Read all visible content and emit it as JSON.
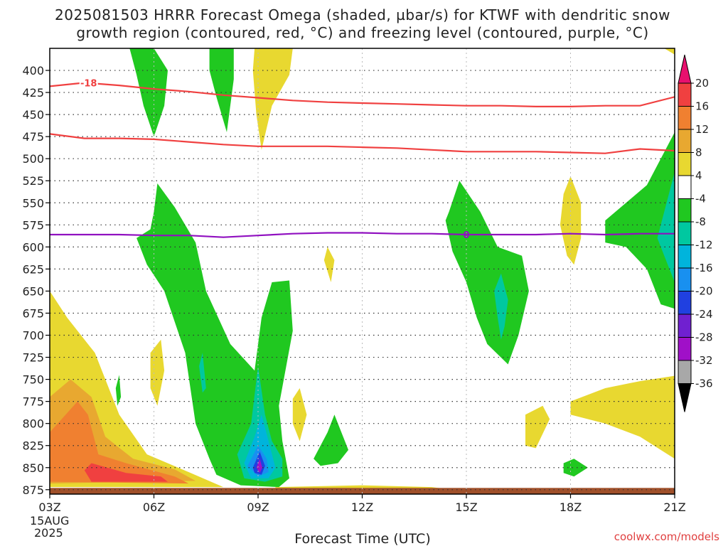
{
  "chart_data": {
    "type": "heatmap",
    "title": "2025081503 HRRR Forecast Omega (shaded, µbar/s) for KTWF with dendritic snow",
    "subtitle": "growth region (contoured, red, °C) and freezing level (contoured, purple, °C)",
    "xlabel": "Forecast Time (UTC)",
    "ylabel": "",
    "credit": "coolwx.com/models",
    "x_ticks": [
      "03Z",
      "06Z",
      "09Z",
      "12Z",
      "15Z",
      "18Z",
      "21Z"
    ],
    "x_hours": [
      3,
      6,
      9,
      12,
      15,
      18,
      21
    ],
    "x_date_lines": [
      "15AUG",
      "2025"
    ],
    "xlim": [
      3,
      21
    ],
    "y_ticks": [
      400,
      425,
      450,
      475,
      500,
      525,
      550,
      575,
      600,
      625,
      650,
      675,
      700,
      725,
      750,
      775,
      800,
      825,
      850,
      875
    ],
    "ylim": [
      375,
      880
    ],
    "grid": true,
    "colorbar": {
      "labels": [
        "20",
        "16",
        "12",
        "8",
        "4",
        "-4",
        "-8",
        "-12",
        "-16",
        "-20",
        "-24",
        "-28",
        "-32",
        "-36"
      ],
      "colors": [
        "#e8106e",
        "#f04040",
        "#f08030",
        "#e8a830",
        "#e8d830",
        "#ffffff",
        "#20c820",
        "#00c8a0",
        "#00b4dc",
        "#1890f0",
        "#2040e0",
        "#7020d0",
        "#a010c8",
        "#a8a8a8",
        "#000000"
      ]
    },
    "contour_labels": {
      "dgz_top": "-18",
      "freezing_level": "0"
    },
    "series": [
      {
        "name": "dgz_upper",
        "color": "#f04040",
        "x": [
          3,
          4,
          5,
          6,
          7,
          8,
          9,
          10,
          11,
          12,
          13,
          14,
          15,
          16,
          17,
          18,
          19,
          20,
          21
        ],
        "y": [
          418,
          414,
          417,
          421,
          424,
          428,
          431,
          434,
          436,
          437,
          438,
          439,
          440,
          440,
          441,
          441,
          440,
          440,
          430
        ]
      },
      {
        "name": "dgz_lower",
        "color": "#f04040",
        "x": [
          3,
          4,
          5,
          6,
          7,
          8,
          9,
          10,
          11,
          12,
          13,
          14,
          15,
          16,
          17,
          18,
          19,
          20,
          21
        ],
        "y": [
          472,
          477,
          477,
          478,
          481,
          484,
          486,
          486,
          486,
          487,
          488,
          490,
          492,
          492,
          492,
          493,
          494,
          489,
          491
        ]
      },
      {
        "name": "freezing_level",
        "color": "#9010c0",
        "x": [
          3,
          4,
          5,
          6,
          7,
          8,
          9,
          10,
          11,
          12,
          13,
          14,
          15,
          16,
          17,
          18,
          19,
          20,
          21
        ],
        "y": [
          586,
          586,
          586,
          587,
          587,
          589,
          587,
          585,
          584,
          584,
          585,
          585,
          586,
          586,
          586,
          585,
          586,
          585,
          585
        ]
      }
    ],
    "shaded_regions": [
      {
        "color": "#20c820",
        "points": [
          [
            5.3,
            375
          ],
          [
            6.0,
            375
          ],
          [
            6.4,
            400
          ],
          [
            6.3,
            440
          ],
          [
            6.0,
            475
          ],
          [
            5.7,
            440
          ],
          [
            5.5,
            405
          ]
        ]
      },
      {
        "color": "#20c820",
        "points": [
          [
            7.6,
            375
          ],
          [
            8.3,
            375
          ],
          [
            8.3,
            410
          ],
          [
            8.1,
            470
          ],
          [
            7.8,
            430
          ],
          [
            7.6,
            400
          ]
        ]
      },
      {
        "color": "#e8d830",
        "points": [
          [
            8.9,
            375
          ],
          [
            10.0,
            375
          ],
          [
            9.9,
            405
          ],
          [
            9.4,
            440
          ],
          [
            9.1,
            490
          ],
          [
            8.95,
            450
          ],
          [
            8.85,
            400
          ]
        ]
      },
      {
        "color": "#e8d830",
        "points": [
          [
            20.7,
            375
          ],
          [
            21,
            375
          ],
          [
            21,
            382
          ]
        ]
      },
      {
        "color": "#20c820",
        "points": [
          [
            5.5,
            590
          ],
          [
            5.9,
            580
          ],
          [
            6.0,
            560
          ],
          [
            6.1,
            528
          ],
          [
            6.6,
            555
          ],
          [
            7.2,
            595
          ],
          [
            7.5,
            650
          ],
          [
            8.2,
            710
          ],
          [
            8.9,
            740
          ],
          [
            9.1,
            680
          ],
          [
            9.4,
            640
          ],
          [
            9.9,
            638
          ],
          [
            10.0,
            695
          ],
          [
            9.6,
            780
          ],
          [
            9.7,
            820
          ],
          [
            9.9,
            862
          ],
          [
            9.6,
            872
          ],
          [
            8.5,
            870
          ],
          [
            7.8,
            858
          ],
          [
            7.6,
            840
          ],
          [
            7.2,
            800
          ],
          [
            6.9,
            720
          ],
          [
            6.3,
            650
          ],
          [
            5.8,
            620
          ]
        ]
      },
      {
        "color": "#00c8a0",
        "points": [
          [
            8.4,
            835
          ],
          [
            8.8,
            800
          ],
          [
            9.0,
            735
          ],
          [
            9.2,
            790
          ],
          [
            9.4,
            820
          ],
          [
            9.7,
            840
          ],
          [
            9.7,
            860
          ],
          [
            9.2,
            866
          ],
          [
            8.6,
            862
          ]
        ]
      },
      {
        "color": "#00b4dc",
        "points": [
          [
            8.6,
            845
          ],
          [
            8.9,
            815
          ],
          [
            9.1,
            790
          ],
          [
            9.3,
            820
          ],
          [
            9.5,
            850
          ],
          [
            9.3,
            862
          ],
          [
            8.8,
            862
          ]
        ]
      },
      {
        "color": "#1890f0",
        "points": [
          [
            8.7,
            848
          ],
          [
            9.0,
            825
          ],
          [
            9.25,
            840
          ],
          [
            9.3,
            855
          ],
          [
            9.0,
            860
          ]
        ]
      },
      {
        "color": "#2040e0",
        "points": [
          [
            8.85,
            850
          ],
          [
            9.05,
            832
          ],
          [
            9.2,
            848
          ],
          [
            9.1,
            858
          ],
          [
            8.9,
            856
          ]
        ]
      },
      {
        "color": "#a010c8",
        "points": [
          [
            8.95,
            850
          ],
          [
            9.05,
            840
          ],
          [
            9.12,
            850
          ],
          [
            9.05,
            856
          ]
        ]
      },
      {
        "color": "#e8d830",
        "points": [
          [
            11.0,
            600
          ],
          [
            11.2,
            615
          ],
          [
            11.1,
            640
          ],
          [
            10.9,
            615
          ]
        ]
      },
      {
        "color": "#e8d830",
        "points": [
          [
            10.0,
            772
          ],
          [
            10.2,
            760
          ],
          [
            10.4,
            790
          ],
          [
            10.2,
            820
          ],
          [
            10.0,
            800
          ]
        ]
      },
      {
        "color": "#20c820",
        "points": [
          [
            10.6,
            840
          ],
          [
            11.0,
            810
          ],
          [
            11.2,
            790
          ],
          [
            11.6,
            830
          ],
          [
            11.3,
            845
          ],
          [
            10.8,
            848
          ]
        ]
      },
      {
        "color": "#20c820",
        "points": [
          [
            14.4,
            570
          ],
          [
            14.5,
            560
          ],
          [
            14.8,
            525
          ],
          [
            15.4,
            560
          ],
          [
            15.9,
            600
          ],
          [
            16.6,
            610
          ],
          [
            16.8,
            650
          ],
          [
            16.5,
            700
          ],
          [
            16.2,
            733
          ],
          [
            15.6,
            710
          ],
          [
            15.3,
            680
          ],
          [
            15.0,
            640
          ],
          [
            14.6,
            605
          ]
        ]
      },
      {
        "color": "#00c8a0",
        "points": [
          [
            15.8,
            650
          ],
          [
            16.0,
            630
          ],
          [
            16.2,
            660
          ],
          [
            16.1,
            690
          ],
          [
            16.0,
            705
          ],
          [
            15.9,
            680
          ]
        ]
      },
      {
        "color": "#e8d830",
        "points": [
          [
            17.7,
            575
          ],
          [
            17.8,
            540
          ],
          [
            18.0,
            520
          ],
          [
            18.3,
            550
          ],
          [
            18.3,
            590
          ],
          [
            18.1,
            620
          ],
          [
            17.9,
            610
          ]
        ]
      },
      {
        "color": "#20c820",
        "points": [
          [
            19.0,
            570
          ],
          [
            19.6,
            550
          ],
          [
            20.2,
            530
          ],
          [
            21,
            470
          ],
          [
            21,
            670
          ],
          [
            20.6,
            665
          ],
          [
            20.2,
            625
          ],
          [
            19.6,
            600
          ],
          [
            19.0,
            595
          ]
        ]
      },
      {
        "color": "#00c8a0",
        "points": [
          [
            20.5,
            590
          ],
          [
            21,
            515
          ],
          [
            21,
            640
          ],
          [
            20.8,
            620
          ]
        ]
      },
      {
        "color": "#e8d830",
        "points": [
          [
            16.7,
            790
          ],
          [
            17.2,
            780
          ],
          [
            17.4,
            795
          ],
          [
            17.0,
            828
          ],
          [
            16.7,
            825
          ]
        ]
      },
      {
        "color": "#20c820",
        "points": [
          [
            17.8,
            845
          ],
          [
            18.1,
            840
          ],
          [
            18.5,
            850
          ],
          [
            18.1,
            860
          ],
          [
            17.8,
            856
          ]
        ]
      },
      {
        "color": "#e8d830",
        "points": [
          [
            18.0,
            775
          ],
          [
            19.0,
            760
          ],
          [
            20.0,
            752
          ],
          [
            21,
            746
          ],
          [
            21,
            840
          ],
          [
            20.0,
            815
          ],
          [
            19.0,
            800
          ],
          [
            18.0,
            790
          ]
        ]
      },
      {
        "color": "#e8d830",
        "points": [
          [
            5.9,
            720
          ],
          [
            6.2,
            705
          ],
          [
            6.3,
            740
          ],
          [
            6.1,
            780
          ],
          [
            5.9,
            760
          ]
        ]
      },
      {
        "color": "#20c820",
        "points": [
          [
            4.9,
            760
          ],
          [
            5.0,
            745
          ],
          [
            5.05,
            770
          ],
          [
            4.95,
            780
          ]
        ]
      },
      {
        "color": "#00c8a0",
        "points": [
          [
            7.3,
            735
          ],
          [
            7.4,
            720
          ],
          [
            7.5,
            760
          ],
          [
            7.4,
            765
          ]
        ]
      },
      {
        "color": "#e8d830",
        "points": [
          [
            3,
            650
          ],
          [
            3.5,
            680
          ],
          [
            4.3,
            720
          ],
          [
            5.0,
            790
          ],
          [
            5.8,
            835
          ],
          [
            7.0,
            855
          ],
          [
            8.0,
            872
          ],
          [
            3,
            872
          ]
        ]
      },
      {
        "color": "#e8a830",
        "points": [
          [
            3,
            770
          ],
          [
            3.6,
            750
          ],
          [
            4.2,
            770
          ],
          [
            4.6,
            815
          ],
          [
            5.4,
            840
          ],
          [
            6.6,
            852
          ],
          [
            7.2,
            865
          ],
          [
            3,
            868
          ]
        ]
      },
      {
        "color": "#f08030",
        "points": [
          [
            3,
            810
          ],
          [
            3.8,
            775
          ],
          [
            4.1,
            790
          ],
          [
            4.4,
            835
          ],
          [
            5.2,
            845
          ],
          [
            6.6,
            860
          ],
          [
            7.0,
            868
          ],
          [
            3,
            866
          ]
        ]
      },
      {
        "color": "#f04040",
        "points": [
          [
            4.0,
            853
          ],
          [
            4.2,
            845
          ],
          [
            5.2,
            856
          ],
          [
            6.2,
            860
          ],
          [
            6.4,
            866
          ],
          [
            4.2,
            866
          ]
        ]
      },
      {
        "color": "#e8d830",
        "points": [
          [
            9.5,
            872
          ],
          [
            12.0,
            870
          ],
          [
            14.0,
            872
          ],
          [
            14.8,
            876
          ],
          [
            9.5,
            876
          ]
        ]
      }
    ],
    "terrain": {
      "color": "#a0502a",
      "top": 873
    }
  }
}
